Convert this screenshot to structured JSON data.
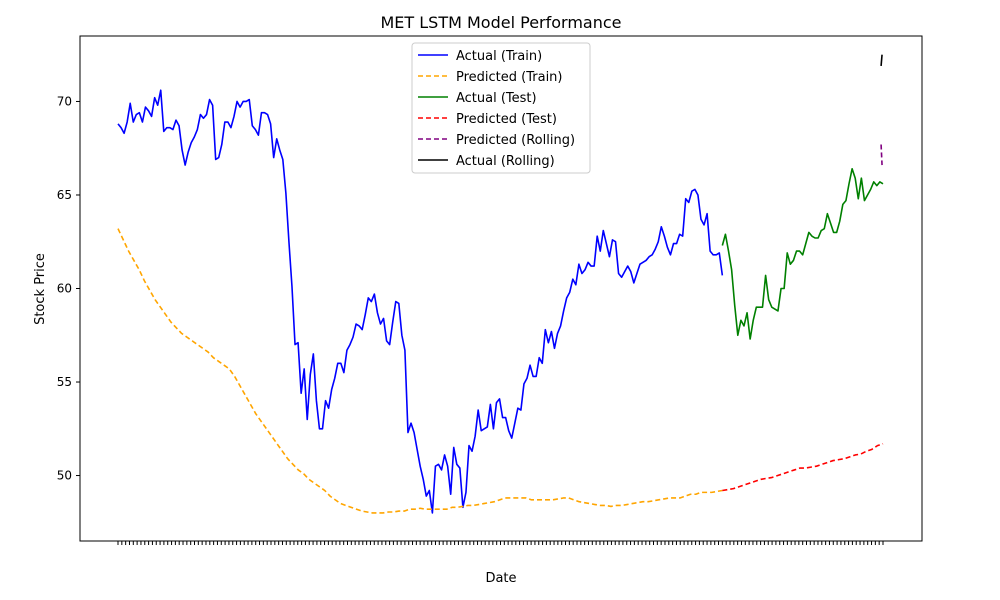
{
  "chart_data": {
    "type": "line",
    "title": "MET LSTM Model Performance",
    "xlabel": "Date",
    "ylabel": "Stock Price",
    "ylim": [
      46.5,
      73.5
    ],
    "yticks": [
      50,
      55,
      60,
      65,
      70
    ],
    "ytick_labels": [
      "50",
      "55",
      "60",
      "65",
      "70"
    ],
    "x_tick_count": 200,
    "legend_position": "upper-center",
    "series": [
      {
        "name": "Actual (Train)",
        "color": "#0000ff",
        "style": "solid",
        "x_start": 0,
        "values": [
          68.8,
          68.6,
          68.3,
          68.9,
          69.9,
          68.9,
          69.3,
          69.4,
          68.9,
          69.7,
          69.5,
          69.2,
          70.2,
          69.8,
          70.6,
          68.4,
          68.6,
          68.6,
          68.5,
          69.0,
          68.7,
          67.4,
          66.6,
          67.3,
          67.8,
          68.1,
          68.5,
          69.3,
          69.1,
          69.3,
          70.1,
          69.8,
          66.9,
          67.0,
          67.7,
          68.9,
          68.9,
          68.6,
          69.2,
          70.0,
          69.7,
          70.0,
          70.0,
          70.1,
          68.7,
          68.5,
          68.2,
          69.4,
          69.4,
          69.3,
          68.8,
          67.0,
          68.0,
          67.4,
          66.9,
          65.1,
          62.5,
          60.1,
          57.0,
          57.1,
          54.4,
          55.7,
          53.0,
          55.4,
          56.5,
          54.0,
          52.5,
          52.5,
          54.0,
          53.6,
          54.6,
          55.2,
          56.0,
          56.0,
          55.5,
          56.7,
          57.0,
          57.4,
          58.1,
          58.0,
          57.8,
          58.6,
          59.5,
          59.3,
          59.7,
          58.7,
          58.1,
          58.4,
          57.2,
          57.0,
          58.2,
          59.3,
          59.2,
          57.5,
          56.7,
          52.3,
          52.8,
          52.3,
          51.4,
          50.5,
          49.8,
          48.9,
          49.2,
          48.0,
          50.5,
          50.6,
          50.3,
          51.1,
          50.5,
          49.0,
          51.5,
          50.6,
          50.4,
          48.3,
          49.1,
          51.6,
          51.3,
          52.1,
          53.5,
          52.4,
          52.5,
          52.6,
          53.8,
          52.5,
          53.9,
          54.1,
          53.1,
          53.1,
          52.4,
          52.0,
          52.8,
          53.6,
          53.5,
          54.9,
          55.2,
          55.9,
          55.3,
          55.3,
          56.3,
          56.0,
          57.8,
          57.1,
          57.7,
          56.8,
          57.6,
          58.0,
          58.8,
          59.5,
          59.8,
          60.5,
          60.2,
          61.3,
          60.8,
          61.0,
          61.4,
          61.2,
          61.2,
          62.8,
          62.0,
          63.1,
          62.4,
          61.7,
          62.6,
          62.5,
          60.8,
          60.6,
          60.9,
          61.2,
          60.9,
          60.3,
          60.8,
          61.3,
          61.4,
          61.5,
          61.7,
          61.8,
          62.1,
          62.5,
          63.3,
          62.8,
          62.2,
          61.8,
          62.4,
          62.4,
          62.9,
          62.8,
          64.8,
          64.6,
          65.2,
          65.3,
          65.0,
          63.7,
          63.4,
          64.0,
          62.0,
          61.8,
          61.8,
          61.9,
          60.7
        ]
      },
      {
        "name": "Predicted (Train)",
        "color": "#ffa500",
        "style": "dashed",
        "x_start": 0,
        "values": [
          63.2,
          62.6,
          62.0,
          61.5,
          61.0,
          60.4,
          59.9,
          59.4,
          59.0,
          58.6,
          58.2,
          57.9,
          57.6,
          57.4,
          57.2,
          57.0,
          56.8,
          56.6,
          56.3,
          56.1,
          55.9,
          55.7,
          55.3,
          54.8,
          54.3,
          53.8,
          53.3,
          52.9,
          52.5,
          52.1,
          51.7,
          51.3,
          50.9,
          50.6,
          50.3,
          50.1,
          49.8,
          49.6,
          49.4,
          49.2,
          48.9,
          48.7,
          48.5,
          48.4,
          48.3,
          48.2,
          48.1,
          48.05,
          48.0,
          48.0,
          48.0,
          48.05,
          48.05,
          48.1,
          48.1,
          48.2,
          48.2,
          48.25,
          48.2,
          48.2,
          48.2,
          48.2,
          48.2,
          48.3,
          48.3,
          48.35,
          48.4,
          48.4,
          48.45,
          48.5,
          48.55,
          48.6,
          48.7,
          48.8,
          48.8,
          48.8,
          48.8,
          48.8,
          48.7,
          48.7,
          48.7,
          48.7,
          48.7,
          48.75,
          48.8,
          48.8,
          48.7,
          48.6,
          48.55,
          48.5,
          48.45,
          48.4,
          48.4,
          48.35,
          48.4,
          48.4,
          48.45,
          48.5,
          48.55,
          48.6,
          48.6,
          48.65,
          48.7,
          48.75,
          48.8,
          48.8,
          48.8,
          48.9,
          49.0,
          49.0,
          49.1,
          49.1,
          49.1,
          49.15,
          49.2
        ]
      },
      {
        "name": "Actual (Test)",
        "color": "#008000",
        "style": "solid",
        "x_start": 158,
        "values": [
          62.3,
          62.9,
          62.0,
          61.0,
          59.1,
          57.5,
          58.3,
          58.0,
          58.7,
          57.3,
          58.3,
          59.0,
          59.0,
          59.0,
          60.7,
          59.4,
          59.0,
          58.9,
          58.8,
          60.0,
          60.0,
          61.9,
          61.3,
          61.5,
          62.0,
          62.0,
          61.8,
          62.4,
          63.0,
          62.8,
          62.7,
          62.7,
          63.1,
          63.2,
          64.0,
          63.5,
          63.0,
          63.0,
          63.6,
          64.5,
          64.7,
          65.6,
          66.4,
          65.9,
          64.8,
          65.9,
          64.7,
          65.0,
          65.3,
          65.7,
          65.5,
          65.7,
          65.6
        ]
      },
      {
        "name": "Predicted (Test)",
        "color": "#ff0000",
        "style": "dashed",
        "x_start": 158,
        "values": [
          49.2,
          49.25,
          49.3,
          49.4,
          49.5,
          49.6,
          49.7,
          49.8,
          49.85,
          49.9,
          50.0,
          50.1,
          50.2,
          50.3,
          50.4,
          50.4,
          50.45,
          50.5,
          50.6,
          50.7,
          50.8,
          50.85,
          50.9,
          51.0,
          51.1,
          51.15,
          51.3,
          51.4,
          51.6,
          51.7
        ]
      },
      {
        "name": "Predicted (Rolling)",
        "color": "#800080",
        "style": "dashed",
        "x_start": 199.5,
        "values": [
          67.7,
          66.6
        ]
      },
      {
        "name": "Actual (Rolling)",
        "color": "#000000",
        "style": "solid",
        "x_start": 199.5,
        "values": [
          71.9,
          72.5
        ]
      }
    ]
  }
}
